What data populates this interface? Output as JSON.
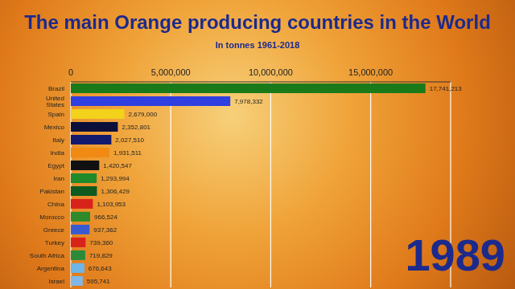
{
  "chart_data": {
    "type": "bar",
    "title": "The main Orange producing countries in the World",
    "subtitle": "In tonnes 1961-2018",
    "annotation": "1989",
    "orientation": "horizontal",
    "categories": [
      "Brazil",
      "United States",
      "Spain",
      "Mexico",
      "Italy",
      "India",
      "Egypt",
      "Iran",
      "Pakistan",
      "China",
      "Morocco",
      "Greece",
      "Turkey",
      "South Africa",
      "Argentina",
      "Israel"
    ],
    "values": [
      17741213,
      7978332,
      2679000,
      2352801,
      2027510,
      1931511,
      1420547,
      1293994,
      1306429,
      1103953,
      966524,
      937362,
      739360,
      719829,
      676643,
      595741
    ],
    "value_labels": [
      "17,741,213",
      "7,978,332",
      "2,679,000",
      "2,352,801",
      "2,027,510",
      "1,931,511",
      "1,420,547",
      "1,293,994",
      "1,306,429",
      "1,103,953",
      "966,524",
      "937,362",
      "739,360",
      "719,829",
      "676,643",
      "595,741"
    ],
    "colors": [
      "#1a7a1a",
      "#2f3fe0",
      "#f2d21a",
      "#0c0f3a",
      "#121a6e",
      "#f08a12",
      "#111111",
      "#1f8a2a",
      "#0f5a1f",
      "#d8231a",
      "#2e8a2a",
      "#3a5bd0",
      "#d8231a",
      "#2a8a3a",
      "#6fb5e8",
      "#7fb8e8"
    ],
    "data_labels": true,
    "grid": true,
    "xlim": [
      0,
      19000000
    ],
    "xticks": [
      0,
      {
        "value": 5000000,
        "label": "5,000,000"
      },
      {
        "value": 10000000,
        "label": "10,000,000"
      },
      {
        "value": 15000000,
        "label": "15,000,000"
      }
    ]
  }
}
